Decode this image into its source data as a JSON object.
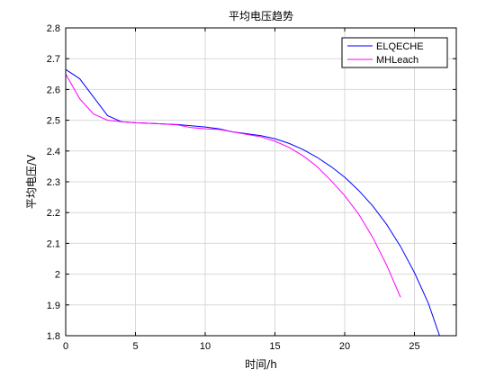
{
  "chart_data": {
    "type": "line",
    "title": "平均电压趋势",
    "xlabel": "时间/h",
    "ylabel": "平均电压/V",
    "xlim": [
      0,
      28
    ],
    "ylim": [
      1.8,
      2.8
    ],
    "xticks": [
      0,
      5,
      10,
      15,
      20,
      25
    ],
    "yticks": [
      1.8,
      1.9,
      2.0,
      2.1,
      2.2,
      2.3,
      2.4,
      2.5,
      2.6,
      2.7,
      2.8
    ],
    "grid": true,
    "legend_position": "top-right",
    "series": [
      {
        "name": "ELQECHE",
        "color": "#0000ff",
        "x": [
          0,
          1,
          2,
          3,
          4,
          5,
          6,
          7,
          8,
          9,
          10,
          11,
          12,
          13,
          14,
          15,
          16,
          17,
          18,
          19,
          20,
          21,
          22,
          23,
          24,
          25,
          26,
          26.8
        ],
        "y": [
          2.665,
          2.635,
          2.575,
          2.515,
          2.495,
          2.492,
          2.49,
          2.488,
          2.486,
          2.482,
          2.478,
          2.472,
          2.462,
          2.456,
          2.45,
          2.44,
          2.425,
          2.405,
          2.38,
          2.35,
          2.315,
          2.272,
          2.222,
          2.162,
          2.09,
          2.005,
          1.905,
          1.8
        ]
      },
      {
        "name": "MHLeach",
        "color": "#ff00ff",
        "x": [
          0,
          1,
          2,
          3,
          4,
          5,
          6,
          7,
          8,
          9,
          10,
          11,
          12,
          13,
          14,
          15,
          16,
          17,
          18,
          19,
          20,
          21,
          22,
          23,
          24
        ],
        "y": [
          2.65,
          2.57,
          2.52,
          2.5,
          2.495,
          2.492,
          2.49,
          2.488,
          2.485,
          2.476,
          2.472,
          2.47,
          2.462,
          2.454,
          2.446,
          2.432,
          2.412,
          2.385,
          2.35,
          2.305,
          2.255,
          2.195,
          2.12,
          2.03,
          1.925
        ]
      }
    ]
  }
}
